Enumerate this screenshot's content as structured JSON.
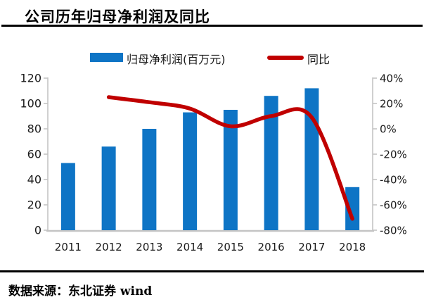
{
  "title": "公司历年归母净利润及同比",
  "footer": {
    "source_text": "数据来源：东北证券 wind"
  },
  "colors": {
    "bar": "#0E74C5",
    "line": "#C00000",
    "axis": "#C4C4C4",
    "text": "#1A1A1A"
  },
  "chart_data": {
    "type": "bar",
    "subtype": "bar-with-secondary-line",
    "title": "公司历年归母净利润及同比",
    "categories": [
      "2011",
      "2012",
      "2013",
      "2014",
      "2015",
      "2016",
      "2017",
      "2018"
    ],
    "series": [
      {
        "name": "归母净利润(百万元)",
        "type": "bar",
        "axis": "left",
        "color": "#0E74C5",
        "values": [
          53,
          66,
          80,
          93,
          95,
          106,
          112,
          34
        ]
      },
      {
        "name": "同比",
        "type": "line",
        "axis": "right",
        "color": "#C00000",
        "values": [
          null,
          25,
          21,
          16,
          2,
          10,
          9,
          -71
        ]
      }
    ],
    "left_axis": {
      "range": [
        0,
        120
      ],
      "ticks": [
        {
          "value": 0,
          "label": "0"
        },
        {
          "value": 20,
          "label": "20"
        },
        {
          "value": 40,
          "label": "40"
        },
        {
          "value": 60,
          "label": "60"
        },
        {
          "value": 80,
          "label": "80"
        },
        {
          "value": 100,
          "label": "100"
        },
        {
          "value": 120,
          "label": "120"
        }
      ]
    },
    "right_axis": {
      "range": [
        -80,
        40
      ],
      "ticks": [
        {
          "value": 40,
          "label": "40%"
        },
        {
          "value": 20,
          "label": "20%"
        },
        {
          "value": 0,
          "label": "0%"
        },
        {
          "value": -20,
          "label": "-20%"
        },
        {
          "value": -40,
          "label": "-40%"
        },
        {
          "value": -60,
          "label": "-60%"
        },
        {
          "value": -80,
          "label": "-80%"
        }
      ]
    },
    "grid": false,
    "legend_position": "top"
  }
}
